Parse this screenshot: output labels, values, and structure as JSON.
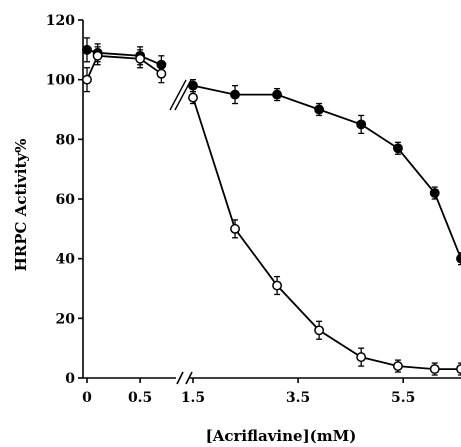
{
  "chart_data": {
    "type": "line",
    "xlabel": "[Acriflavine](mM)",
    "ylabel": "HRPC Activity%",
    "ylim": [
      0,
      120
    ],
    "yticks": [
      "0",
      "20",
      "40",
      "60",
      "80",
      "100",
      "120"
    ],
    "x_axis": {
      "broken": true,
      "left_segment": {
        "range": [
          0,
          0.8
        ],
        "ticks": [
          "0",
          "0.5"
        ],
        "tick_values": [
          0,
          0.5
        ]
      },
      "right_segment": {
        "range": [
          1.5,
          6.6
        ],
        "ticks": [
          "1.5",
          "3.5",
          "5.5"
        ],
        "tick_values": [
          1.5,
          3.5,
          5.5
        ]
      }
    },
    "grid": false,
    "series": [
      {
        "marker": "filled-circle",
        "color": "#000000",
        "points": [
          {
            "x": 0,
            "y": 110,
            "err": 4
          },
          {
            "x": 0.1,
            "y": 109,
            "err": 3
          },
          {
            "x": 0.5,
            "y": 108,
            "err": 3
          },
          {
            "x": 0.7,
            "y": 105,
            "err": 3
          },
          {
            "x": 1.5,
            "y": 98,
            "err": 2
          },
          {
            "x": 2.3,
            "y": 95,
            "err": 3
          },
          {
            "x": 3.1,
            "y": 95,
            "err": 2
          },
          {
            "x": 3.9,
            "y": 90,
            "err": 2
          },
          {
            "x": 4.7,
            "y": 85,
            "err": 3
          },
          {
            "x": 5.4,
            "y": 77,
            "err": 2
          },
          {
            "x": 6.1,
            "y": 62,
            "err": 2
          },
          {
            "x": 6.6,
            "y": 40,
            "err": 2
          }
        ]
      },
      {
        "marker": "open-circle",
        "color": "#000000",
        "points": [
          {
            "x": 0,
            "y": 100,
            "err": 4
          },
          {
            "x": 0.1,
            "y": 108,
            "err": 3
          },
          {
            "x": 0.5,
            "y": 107,
            "err": 3
          },
          {
            "x": 0.7,
            "y": 102,
            "err": 3
          },
          {
            "x": 1.5,
            "y": 94,
            "err": 2
          },
          {
            "x": 2.3,
            "y": 50,
            "err": 3
          },
          {
            "x": 3.1,
            "y": 31,
            "err": 3
          },
          {
            "x": 3.9,
            "y": 16,
            "err": 3
          },
          {
            "x": 4.7,
            "y": 7,
            "err": 3
          },
          {
            "x": 5.4,
            "y": 4,
            "err": 2
          },
          {
            "x": 6.1,
            "y": 3,
            "err": 2
          },
          {
            "x": 6.6,
            "y": 3,
            "err": 2
          }
        ]
      }
    ]
  }
}
